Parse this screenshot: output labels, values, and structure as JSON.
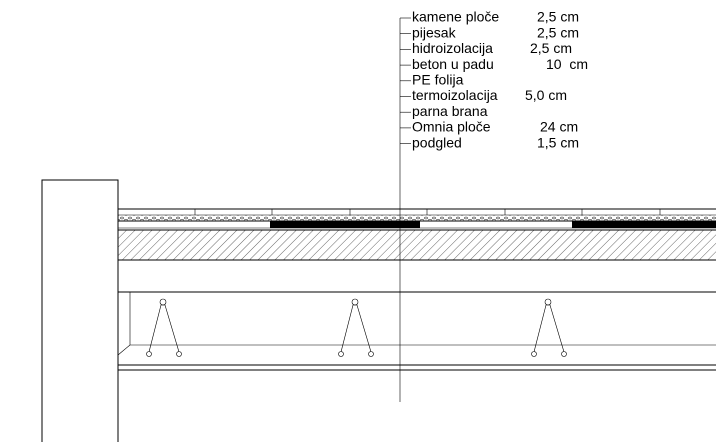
{
  "layers": [
    {
      "name": "kamene ploče",
      "thickness": "2,5 cm"
    },
    {
      "name": "pijesak",
      "thickness": "2,5 cm"
    },
    {
      "name": "hidroizolacija",
      "thickness": "2,5 cm"
    },
    {
      "name": "beton u padu",
      "thickness": "10  cm"
    },
    {
      "name": "PE folija"
    },
    {
      "name": "termoizolacija",
      "thickness": "5,0 cm"
    },
    {
      "name": "parna brana"
    },
    {
      "name": "Omnia ploče",
      "thickness": "24 cm"
    },
    {
      "name": "podgled",
      "thickness": "1,5 cm"
    }
  ]
}
